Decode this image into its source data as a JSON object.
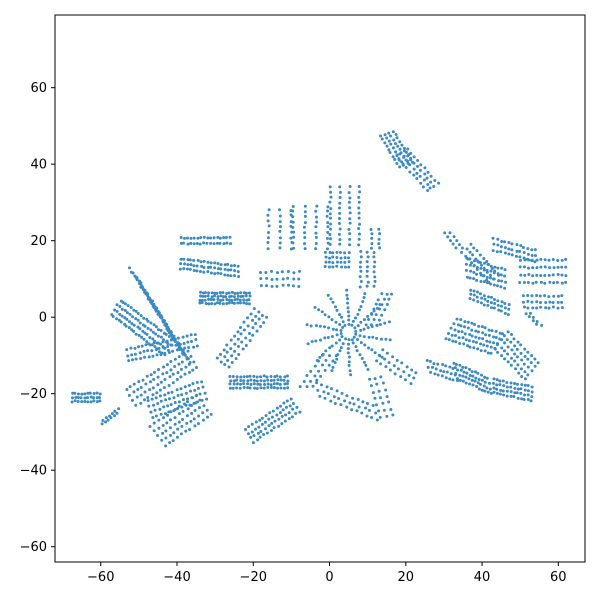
{
  "chart_data": {
    "type": "scatter",
    "title": "",
    "xlabel": "",
    "ylabel": "",
    "xlim": [
      -72,
      67
    ],
    "ylim": [
      -64,
      79
    ],
    "x_ticks": [
      -60,
      -40,
      -20,
      0,
      20,
      40,
      60
    ],
    "y_ticks": [
      -60,
      -40,
      -20,
      0,
      20,
      40,
      60
    ],
    "x_tick_labels": [
      "−60",
      "−40",
      "−20",
      "0",
      "20",
      "40",
      "60"
    ],
    "y_tick_labels": [
      "−60",
      "−40",
      "−20",
      "0",
      "20",
      "40",
      "60"
    ],
    "grid": false,
    "point_color": "#3b8bc2",
    "clusters": [
      {
        "type": "strips",
        "p0": [
          -60.2,
          -21
        ],
        "p1": [
          -67.5,
          -21
        ],
        "perp": [
          0,
          -1
        ],
        "count": 3,
        "gap": 1.0,
        "n": 10
      },
      {
        "type": "strips",
        "p0": [
          -55.5,
          -24.5
        ],
        "p1": [
          -59.5,
          -27.5
        ],
        "perp": [
          0.3,
          1
        ],
        "count": 2,
        "gap": 1.0,
        "n": 6
      },
      {
        "type": "strips",
        "p0": [
          -56,
          2.5
        ],
        "p1": [
          -42,
          -8
        ],
        "perp": [
          0.55,
          0.83
        ],
        "count": 4,
        "gap": 1.5,
        "n": 22
      },
      {
        "type": "strips",
        "p0": [
          -51,
          11
        ],
        "p1": [
          -38,
          -10
        ],
        "perp": [
          -0.6,
          0.8
        ],
        "count": 4,
        "gap": 1.6,
        "n": 22
      },
      {
        "type": "strips",
        "p0": [
          -53,
          -10
        ],
        "p1": [
          -35,
          -6
        ],
        "perp": [
          0.2,
          -1
        ],
        "count": 3,
        "gap": 1.5,
        "n": 18
      },
      {
        "type": "strips",
        "p0": [
          -52,
          -21
        ],
        "p1": [
          -36,
          -11
        ],
        "perp": [
          0.53,
          -0.85
        ],
        "count": 4,
        "gap": 1.6,
        "n": 16
      },
      {
        "type": "strips",
        "p0": [
          -47,
          -24
        ],
        "p1": [
          -33,
          -19
        ],
        "perp": [
          0.3,
          -1
        ],
        "count": 4,
        "gap": 1.5,
        "n": 14
      },
      {
        "type": "strips",
        "p0": [
          -45,
          -31
        ],
        "p1": [
          -33,
          -23
        ],
        "perp": [
          0.6,
          -0.8
        ],
        "count": 5,
        "gap": 1.6,
        "n": 12
      },
      {
        "type": "strips",
        "p0": [
          -39,
          20
        ],
        "p1": [
          -26,
          20
        ],
        "perp": [
          0,
          -1
        ],
        "count": 2,
        "gap": 1.5,
        "n": 16
      },
      {
        "type": "strips",
        "p0": [
          -39,
          14
        ],
        "p1": [
          -24,
          12
        ],
        "perp": [
          0,
          -1
        ],
        "count": 3,
        "gap": 1.3,
        "n": 18
      },
      {
        "type": "strips",
        "p0": [
          -34,
          5
        ],
        "p1": [
          -21,
          5
        ],
        "perp": [
          0,
          -1
        ],
        "count": 4,
        "gap": 0.9,
        "n": 18
      },
      {
        "type": "strips",
        "p0": [
          -28,
          -12
        ],
        "p1": [
          -18,
          1
        ],
        "perp": [
          0.8,
          -0.6
        ],
        "count": 4,
        "gap": 1.3,
        "n": 12
      },
      {
        "type": "strips",
        "p0": [
          -26,
          -17
        ],
        "p1": [
          -11,
          -17
        ],
        "perp": [
          0,
          -1
        ],
        "count": 4,
        "gap": 1.0,
        "n": 18
      },
      {
        "type": "strips",
        "p0": [
          -21,
          -31
        ],
        "p1": [
          -9,
          -23
        ],
        "perp": [
          0.55,
          -0.85
        ],
        "count": 4,
        "gap": 1.3,
        "n": 14
      },
      {
        "type": "strips",
        "p0": [
          -18,
          10
        ],
        "p1": [
          -8,
          10
        ],
        "perp": [
          0,
          -1
        ],
        "count": 3,
        "gap": 1.8,
        "n": 8
      },
      {
        "type": "strips",
        "p0": [
          -13,
          28
        ],
        "p1": [
          -13,
          18
        ],
        "perp": [
          1,
          0
        ],
        "count": 3,
        "gap": 3.0,
        "n": 8
      },
      {
        "type": "strips",
        "p0": [
          -5,
          29
        ],
        "p1": [
          -5,
          18
        ],
        "perp": [
          1,
          0
        ],
        "count": 4,
        "gap": 3.0,
        "n": 9
      },
      {
        "type": "strips",
        "p0": [
          4,
          34
        ],
        "p1": [
          4,
          19
        ],
        "perp": [
          1,
          0
        ],
        "count": 4,
        "gap": 2.5,
        "n": 12
      },
      {
        "type": "strips",
        "p0": [
          12,
          23
        ],
        "p1": [
          12,
          18
        ],
        "perp": [
          1,
          0
        ],
        "count": 2,
        "gap": 2.0,
        "n": 5
      },
      {
        "type": "strips",
        "p0": [
          -1,
          15
        ],
        "p1": [
          5,
          15
        ],
        "perp": [
          0,
          -1
        ],
        "count": 4,
        "gap": 1.2,
        "n": 7
      },
      {
        "type": "strips",
        "p0": [
          10,
          17
        ],
        "p1": [
          10,
          8
        ],
        "perp": [
          1,
          0
        ],
        "count": 3,
        "gap": 1.8,
        "n": 8
      },
      {
        "type": "strips",
        "p0": [
          15,
          6
        ],
        "p1": [
          11,
          -2
        ],
        "perp": [
          1,
          0
        ],
        "count": 3,
        "gap": 1.4,
        "n": 7
      },
      {
        "type": "radial",
        "center": [
          5,
          -4
        ],
        "r0": 2,
        "r1": 11,
        "count": 14,
        "n": 9
      },
      {
        "type": "strips",
        "p0": [
          -6,
          -18
        ],
        "p1": [
          0,
          -10
        ],
        "perp": [
          1,
          0
        ],
        "count": 3,
        "gap": 1.8,
        "n": 7
      },
      {
        "type": "strips",
        "p0": [
          -3,
          -19
        ],
        "p1": [
          12,
          -25
        ],
        "perp": [
          0.3,
          -1
        ],
        "count": 3,
        "gap": 1.8,
        "n": 12
      },
      {
        "type": "strips",
        "p0": [
          12,
          -16
        ],
        "p1": [
          15,
          -26
        ],
        "perp": [
          1,
          0.2
        ],
        "count": 3,
        "gap": 1.6,
        "n": 7
      },
      {
        "type": "strips",
        "p0": [
          13,
          -10
        ],
        "p1": [
          22,
          -16
        ],
        "perp": [
          0.5,
          0.85
        ],
        "count": 3,
        "gap": 1.6,
        "n": 8
      },
      {
        "type": "strips",
        "p0": [
          15,
          48
        ],
        "p1": [
          20,
          40
        ],
        "perp": [
          0.9,
          0.3
        ],
        "count": 4,
        "gap": 1.3,
        "n": 10
      },
      {
        "type": "strips",
        "p0": [
          19,
          43
        ],
        "p1": [
          27,
          34
        ],
        "perp": [
          0.8,
          0.5
        ],
        "count": 4,
        "gap": 1.2,
        "n": 10
      },
      {
        "type": "strips",
        "p0": [
          31,
          22
        ],
        "p1": [
          34,
          18
        ],
        "perp": [
          1,
          0
        ],
        "count": 2,
        "gap": 1.5,
        "n": 5
      },
      {
        "type": "strips",
        "p0": [
          36,
          18
        ],
        "p1": [
          43,
          10
        ],
        "perp": [
          0.75,
          0.65
        ],
        "count": 3,
        "gap": 1.6,
        "n": 10
      },
      {
        "type": "strips",
        "p0": [
          43,
          19
        ],
        "p1": [
          54,
          16
        ],
        "perp": [
          0,
          -1
        ],
        "count": 3,
        "gap": 1.5,
        "n": 12
      },
      {
        "type": "strips",
        "p0": [
          36,
          13
        ],
        "p1": [
          46,
          10
        ],
        "perp": [
          0,
          -1
        ],
        "count": 4,
        "gap": 1.6,
        "n": 12
      },
      {
        "type": "strips",
        "p0": [
          37,
          6
        ],
        "p1": [
          47,
          2
        ],
        "perp": [
          0,
          -1
        ],
        "count": 3,
        "gap": 1.2,
        "n": 12
      },
      {
        "type": "strips",
        "p0": [
          50,
          12
        ],
        "p1": [
          62,
          12
        ],
        "perp": [
          0,
          -1
        ],
        "count": 4,
        "gap": 2.0,
        "n": 12
      },
      {
        "type": "strips",
        "p0": [
          51,
          4
        ],
        "p1": [
          61,
          4
        ],
        "perp": [
          0,
          -1
        ],
        "count": 3,
        "gap": 1.5,
        "n": 10
      },
      {
        "type": "strips",
        "p0": [
          52,
          1
        ],
        "p1": [
          55,
          -2
        ],
        "perp": [
          1,
          0
        ],
        "count": 2,
        "gap": 1.2,
        "n": 4
      },
      {
        "type": "strips",
        "p0": [
          32,
          -3
        ],
        "p1": [
          44,
          -7
        ],
        "perp": [
          -0.5,
          -0.85
        ],
        "count": 5,
        "gap": 1.5,
        "n": 14
      },
      {
        "type": "strips",
        "p0": [
          45,
          -6
        ],
        "p1": [
          53,
          -14
        ],
        "perp": [
          0.6,
          0.8
        ],
        "count": 5,
        "gap": 1.4,
        "n": 10
      },
      {
        "type": "strips",
        "p0": [
          26,
          -13
        ],
        "p1": [
          33,
          -15
        ],
        "perp": [
          0.3,
          -1
        ],
        "count": 3,
        "gap": 1.6,
        "n": 8
      },
      {
        "type": "strips",
        "p0": [
          33,
          -14
        ],
        "p1": [
          42,
          -18
        ],
        "perp": [
          0.25,
          -1
        ],
        "count": 4,
        "gap": 1.4,
        "n": 12
      },
      {
        "type": "strips",
        "p0": [
          43,
          -18
        ],
        "p1": [
          53,
          -20
        ],
        "perp": [
          0,
          -1
        ],
        "count": 4,
        "gap": 1.2,
        "n": 12
      }
    ]
  }
}
